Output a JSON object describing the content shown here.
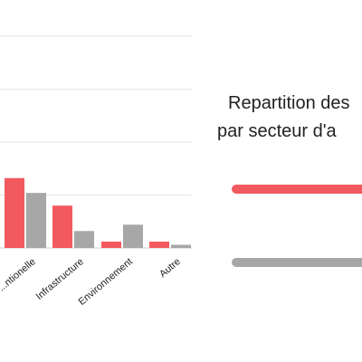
{
  "chart_data": {
    "type": "bar",
    "categories": [
      "...ntionelle",
      "Infrastructure",
      "Environnement",
      "Autre"
    ],
    "series": [
      {
        "values": [
          66,
          40,
          6,
          6
        ],
        "color": "#f25a5f"
      },
      {
        "values": [
          52,
          16,
          22,
          3
        ],
        "color": "#a7a7a7"
      }
    ],
    "ylim": [
      0,
      200
    ],
    "grid": true,
    "legend_position": "right"
  },
  "legend": {
    "title_lines": [
      "Repartition des",
      "par secteur d'a"
    ]
  }
}
